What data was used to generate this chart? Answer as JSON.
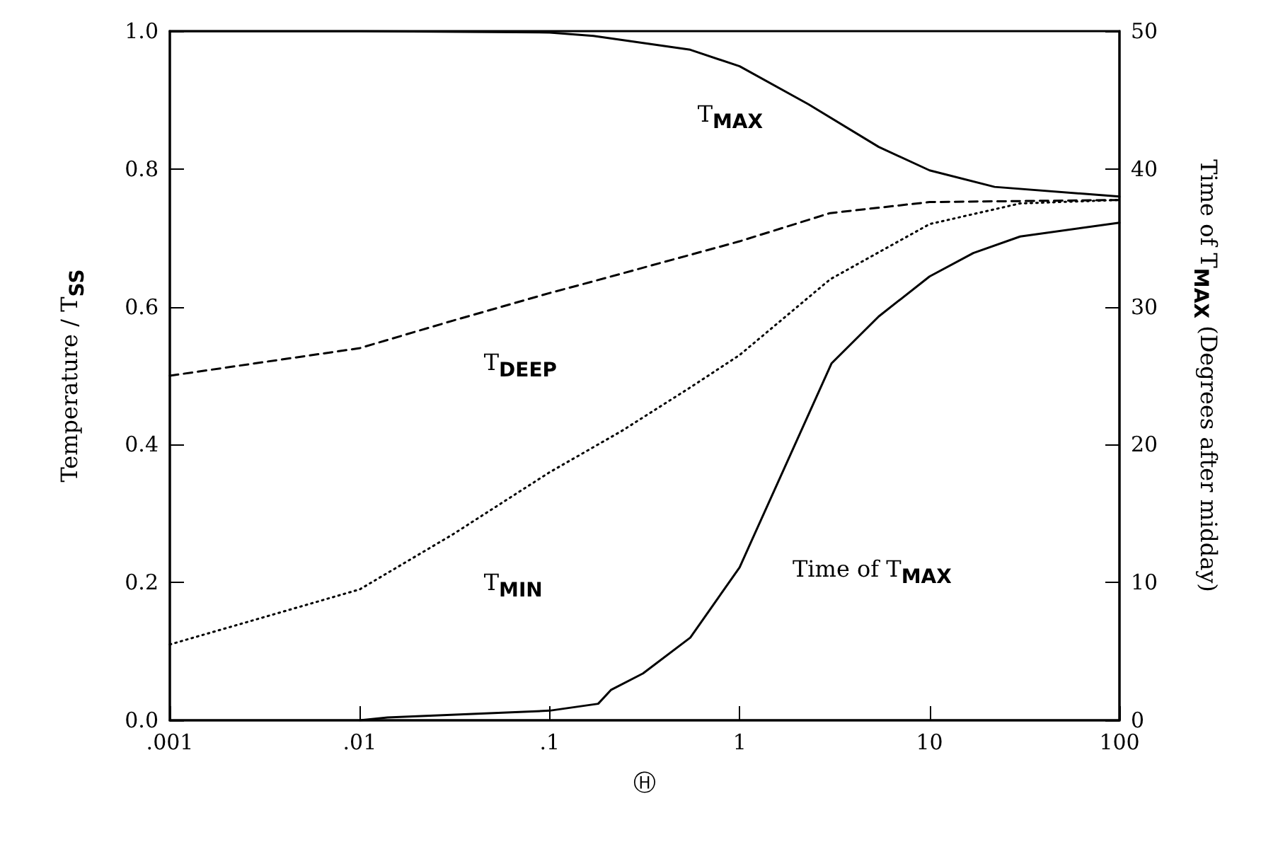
{
  "chart_data": {
    "type": "line",
    "xlabel": "Ⓗ",
    "ylabel": "Temperature / T$_{SS}$",
    "y2label": "Time of T$_{MAX}$ (Degrees after midday)",
    "log": "x",
    "grid": false,
    "legend": false,
    "marker": "none",
    "xlim": [
      0.001,
      100
    ],
    "xticks": [
      {
        "value": 0.001,
        "label": ".001"
      },
      {
        "value": 0.01,
        "label": ".01"
      },
      {
        "value": 0.1,
        "label": ".1"
      },
      {
        "value": 1,
        "label": "1"
      },
      {
        "value": 10,
        "label": "10"
      },
      {
        "value": 100,
        "label": "100"
      }
    ],
    "ylim": [
      0,
      1
    ],
    "yticks": [
      {
        "value": 0,
        "label": "0.0"
      },
      {
        "value": 0.2,
        "label": "0.2"
      },
      {
        "value": 0.4,
        "label": "0.4"
      },
      {
        "value": 0.6,
        "label": "0.6"
      },
      {
        "value": 0.8,
        "label": "0.8"
      },
      {
        "value": 1,
        "label": "1.0"
      }
    ],
    "y2lim": [
      0,
      50
    ],
    "y2ticks": [
      0,
      10,
      20,
      30,
      40,
      50
    ],
    "series": [
      {
        "name": "T$_{MAX}$",
        "color": "#000000",
        "line_style": "solid",
        "x": [
          0.001,
          0.01,
          0.1,
          0.17,
          0.55,
          1,
          2.3,
          5.4,
          10,
          22,
          100
        ],
        "values": [
          1,
          1,
          0.998,
          0.993,
          0.973,
          0.949,
          0.894,
          0.832,
          0.798,
          0.774,
          0.76
        ]
      },
      {
        "name": "T$_{DEEP}$",
        "color": "#000000",
        "line_style": "dashed",
        "x": [
          0.001,
          0.01,
          0.031,
          0.1,
          0.17,
          1,
          3,
          10,
          100
        ],
        "values": [
          0.5,
          0.54,
          0.58,
          0.62,
          0.637,
          0.695,
          0.736,
          0.752,
          0.755
        ]
      },
      {
        "name": "T$_{MIN}$",
        "color": "#000000",
        "line_style": "dotted",
        "x": [
          0.001,
          0.01,
          0.031,
          0.1,
          0.24,
          0.55,
          1,
          3,
          10,
          30,
          100
        ],
        "values": [
          0.11,
          0.19,
          0.27,
          0.36,
          0.42,
          0.483,
          0.53,
          0.64,
          0.72,
          0.75,
          0.755
        ]
      },
      {
        "name": "Time of T$_{MAX}$",
        "color": "#000000",
        "line_style": "solid",
        "axis": "y2",
        "x": [
          0.01,
          0.014,
          0.1,
          0.18,
          0.21,
          0.31,
          0.55,
          1,
          1.72,
          3.05,
          5.4,
          10,
          17,
          30,
          100
        ],
        "values": [
          0,
          0.2,
          0.7,
          1.2,
          2.2,
          3.4,
          6,
          11.1,
          18.3,
          25.9,
          29.3,
          32.2,
          33.9,
          35.1,
          36.1
        ]
      }
    ]
  }
}
